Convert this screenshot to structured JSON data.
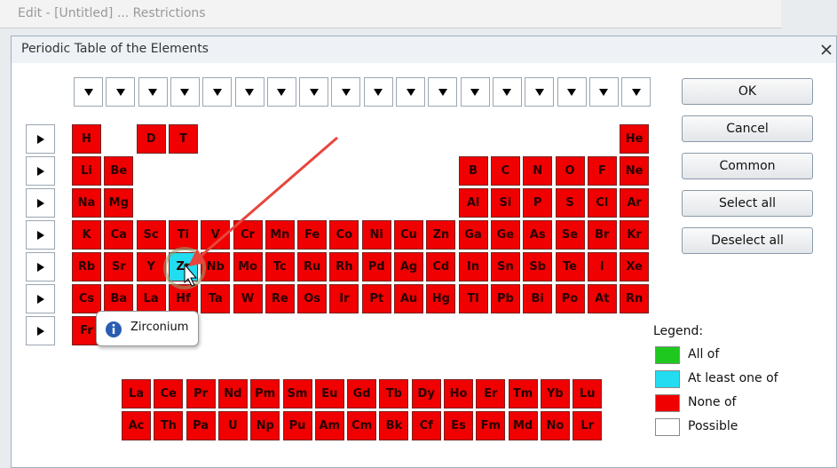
{
  "window_title": "Edit - [Untitled] ... Restrictions",
  "dialog_title": "Periodic Table of the Elements",
  "periodic_table": {
    "rows": [
      [
        "H",
        null,
        "D",
        "T",
        null,
        null,
        null,
        null,
        null,
        null,
        null,
        null,
        null,
        null,
        null,
        null,
        null,
        "He"
      ],
      [
        "Li",
        "Be",
        null,
        null,
        null,
        null,
        null,
        null,
        null,
        null,
        null,
        null,
        "B",
        "C",
        "N",
        "O",
        "F",
        "Ne"
      ],
      [
        "Na",
        "Mg",
        null,
        null,
        null,
        null,
        null,
        null,
        null,
        null,
        null,
        null,
        "Al",
        "Si",
        "P",
        "S",
        "Cl",
        "Ar"
      ],
      [
        "K",
        "Ca",
        "Sc",
        "Ti",
        "V",
        "Cr",
        "Mn",
        "Fe",
        "Co",
        "Ni",
        "Cu",
        "Zn",
        "Ga",
        "Ge",
        "As",
        "Se",
        "Br",
        "Kr"
      ],
      [
        "Rb",
        "Sr",
        "Y",
        "Zr",
        "Nb",
        "Mo",
        "Tc",
        "Ru",
        "Rh",
        "Pd",
        "Ag",
        "Cd",
        "In",
        "Sn",
        "Sb",
        "Te",
        "I",
        "Xe"
      ],
      [
        "Cs",
        "Ba",
        "La",
        "Hf",
        "Ta",
        "W",
        "Re",
        "Os",
        "Ir",
        "Pt",
        "Au",
        "Hg",
        "Tl",
        "Pb",
        "Bi",
        "Po",
        "At",
        "Rn"
      ],
      [
        "Fr",
        null,
        null,
        null,
        null,
        null,
        null,
        null,
        null,
        null,
        null,
        null,
        null,
        null,
        null,
        null,
        null,
        null
      ]
    ],
    "lanthanides": [
      "La",
      "Ce",
      "Pr",
      "Nd",
      "Pm",
      "Sm",
      "Eu",
      "Gd",
      "Tb",
      "Dy",
      "Ho",
      "Er",
      "Tm",
      "Yb",
      "Lu"
    ],
    "actinides": [
      "Ac",
      "Th",
      "Pa",
      "U",
      "Np",
      "Pu",
      "Am",
      "Cm",
      "Bk",
      "Cf",
      "Es",
      "Fm",
      "Md",
      "No",
      "Lr"
    ],
    "at_least_one_of": [
      "Zr"
    ]
  },
  "buttons": [
    "OK",
    "Cancel",
    "Common",
    "Select all",
    "Deselect all"
  ],
  "legend": {
    "title": "Legend:",
    "items": [
      {
        "label": "All of",
        "color": "#1ec81e"
      },
      {
        "label": "At least one of",
        "color": "#22dcf0"
      },
      {
        "label": "None of",
        "color": "#f00000"
      },
      {
        "label": "Possible",
        "color": "#ffffff"
      }
    ]
  },
  "tooltip": "Zirconium"
}
